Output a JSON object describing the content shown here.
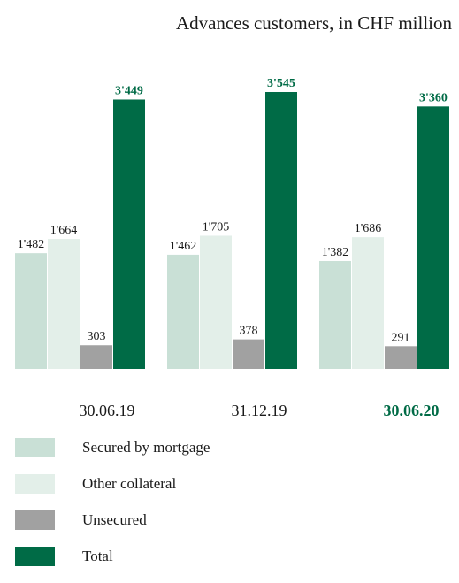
{
  "chart_data": {
    "type": "bar",
    "title": "Advances customers, in CHF million",
    "categories": [
      "30.06.19",
      "31.12.19",
      "30.06.20"
    ],
    "highlight_category_index": 2,
    "series": [
      {
        "name": "Secured by mortgage",
        "color": "#c9e0d6",
        "values": [
          1482,
          1462,
          1382
        ],
        "labels": [
          "1'482",
          "1'462",
          "1'382"
        ]
      },
      {
        "name": "Other collateral",
        "color": "#e3efe9",
        "values": [
          1664,
          1705,
          1686
        ],
        "labels": [
          "1'664",
          "1'705",
          "1'686"
        ]
      },
      {
        "name": "Unsecured",
        "color": "#a1a1a1",
        "values": [
          303,
          378,
          291
        ],
        "labels": [
          "303",
          "378",
          "291"
        ]
      },
      {
        "name": "Total",
        "color": "#006b46",
        "values": [
          3449,
          3545,
          3360
        ],
        "labels": [
          "3'449",
          "3'545",
          "3'360"
        ]
      }
    ],
    "ylim": [
      0,
      3545
    ],
    "grid": false,
    "legend_position": "bottom-left",
    "xlabel": "",
    "ylabel": ""
  },
  "colors": {
    "accent": "#006b46",
    "text": "#1a1a1a"
  }
}
